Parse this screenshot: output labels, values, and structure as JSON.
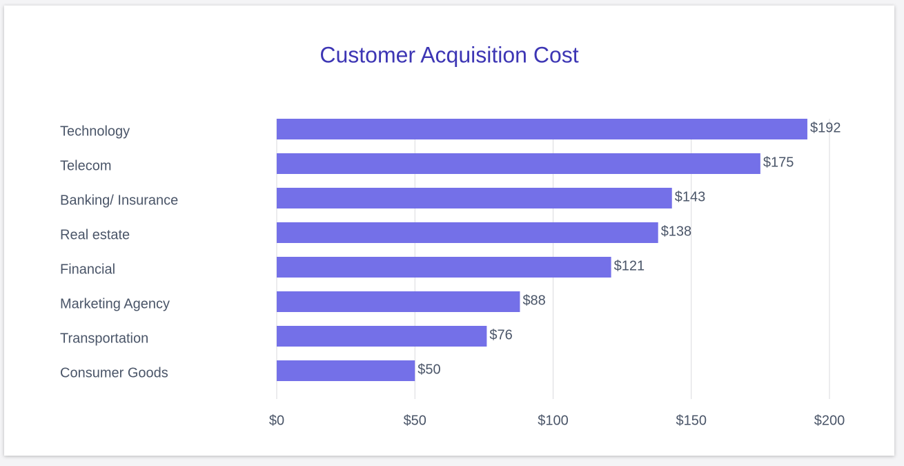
{
  "chart_data": {
    "type": "bar",
    "orientation": "horizontal",
    "title": "Customer Acquisition Cost",
    "categories": [
      "Technology",
      "Telecom",
      "Banking/ Insurance",
      "Real estate",
      "Financial",
      "Marketing Agency",
      "Transportation",
      "Consumer Goods"
    ],
    "values": [
      192,
      175,
      143,
      138,
      121,
      88,
      76,
      50
    ],
    "value_labels": [
      "$192",
      "$175",
      "$143",
      "$138",
      "$121",
      "$88",
      "$76",
      "$50"
    ],
    "color": "#7470e8",
    "xlim": [
      0,
      200
    ],
    "xticks": [
      {
        "value": 0,
        "label": "$0"
      },
      {
        "value": 50,
        "label": "$50"
      },
      {
        "value": 100,
        "label": "$100"
      },
      {
        "value": 150,
        "label": "$150"
      },
      {
        "value": 200,
        "label": "$200"
      }
    ],
    "grid": true
  }
}
